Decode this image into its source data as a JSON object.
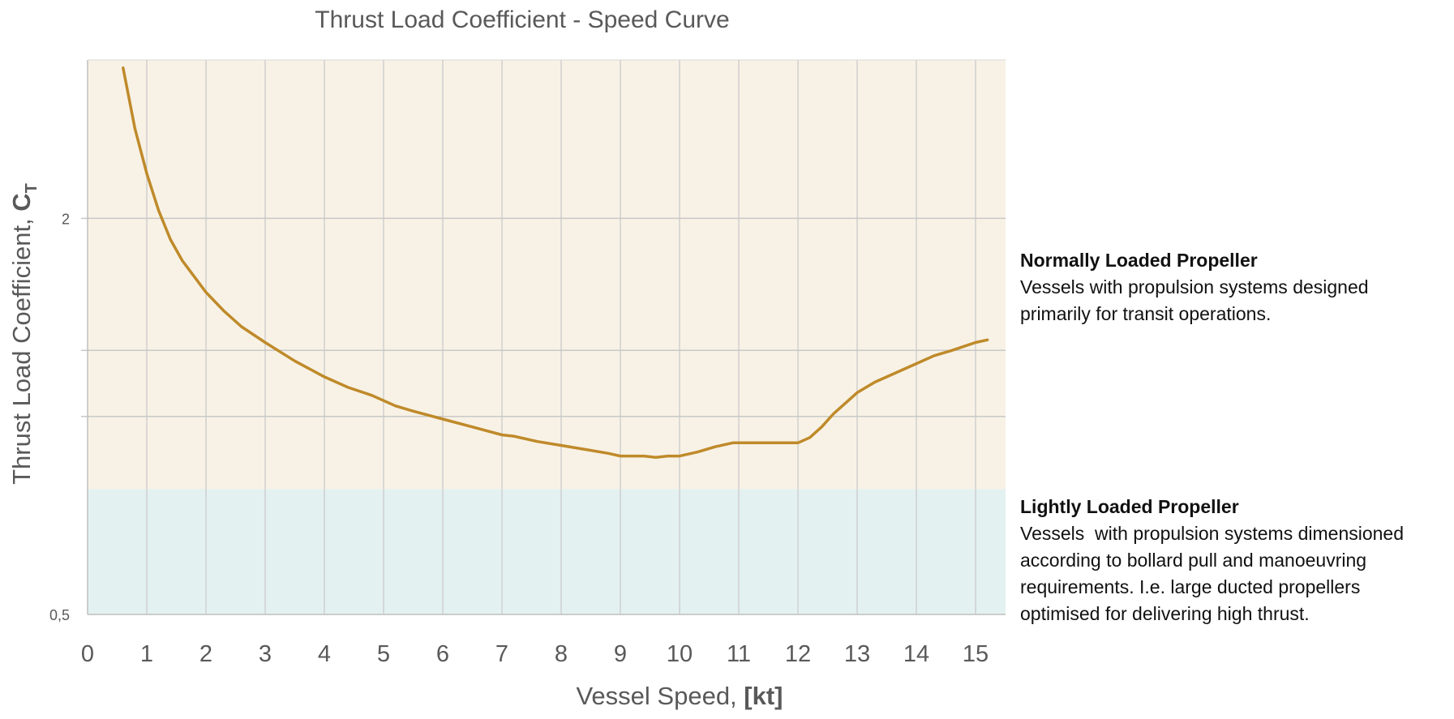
{
  "chart_data": {
    "type": "line",
    "title": "Thrust Load Coefficient - Speed Curve",
    "xlabel": "Vessel Speed, ",
    "xlabel_unit": "[kt]",
    "ylabel": "Thrust Load Coefficient, ",
    "ylabel_symbol": "C",
    "ylabel_subscript": "T",
    "x_ticks": [
      "0",
      "1",
      "2",
      "3",
      "4",
      "5",
      "6",
      "7",
      "8",
      "9",
      "10",
      "11",
      "12",
      "13",
      "14",
      "15"
    ],
    "y_tick_labels": [
      {
        "value": 0.5,
        "label": "0,5"
      },
      {
        "value": 2,
        "label": "2"
      }
    ],
    "y_gridlines": [
      1.25,
      1.5,
      2
    ],
    "xlim": [
      0,
      15.5
    ],
    "ylim": [
      0.5,
      2.6
    ],
    "grid": true,
    "regions": [
      {
        "name": "Lightly Loaded Propeller",
        "y_range": [
          0.5,
          0.975
        ],
        "color": "#e4f1f1"
      },
      {
        "name": "Normally Loaded Propeller",
        "y_range": [
          0.975,
          2.6
        ],
        "color": "#f8f2e6"
      }
    ],
    "series": [
      {
        "color": "#bf8a2a",
        "x": [
          0.6,
          0.8,
          1.0,
          1.2,
          1.4,
          1.6,
          1.8,
          2.0,
          2.3,
          2.6,
          3.0,
          3.5,
          4.0,
          4.4,
          4.8,
          5.2,
          5.5,
          6.0,
          6.5,
          7.0,
          7.2,
          7.6,
          8.0,
          8.4,
          8.8,
          9.0,
          9.4,
          9.6,
          9.8,
          10.0,
          10.3,
          10.6,
          10.9,
          11.2,
          11.6,
          12.0,
          12.2,
          12.4,
          12.6,
          12.8,
          13.0,
          13.3,
          13.6,
          14.0,
          14.3,
          14.6,
          15.0,
          15.2
        ],
        "y": [
          2.57,
          2.34,
          2.17,
          2.03,
          1.92,
          1.84,
          1.78,
          1.72,
          1.65,
          1.59,
          1.53,
          1.46,
          1.4,
          1.36,
          1.33,
          1.29,
          1.27,
          1.24,
          1.21,
          1.18,
          1.175,
          1.155,
          1.14,
          1.125,
          1.11,
          1.1,
          1.1,
          1.095,
          1.1,
          1.1,
          1.115,
          1.135,
          1.15,
          1.15,
          1.15,
          1.15,
          1.17,
          1.21,
          1.26,
          1.3,
          1.34,
          1.38,
          1.41,
          1.45,
          1.48,
          1.5,
          1.53,
          1.54
        ]
      }
    ]
  },
  "annotations": {
    "normal": {
      "title": "Normally Loaded Propeller",
      "body": "Vessels with propulsion systems designed\nprimarily for transit operations."
    },
    "light": {
      "title": "Lightly Loaded Propeller",
      "body": "Vessels  with propulsion systems dimensioned\naccording to bollard pull and manoeuvring\nrequirements. I.e. large ducted propellers\noptimised for delivering high thrust."
    }
  }
}
